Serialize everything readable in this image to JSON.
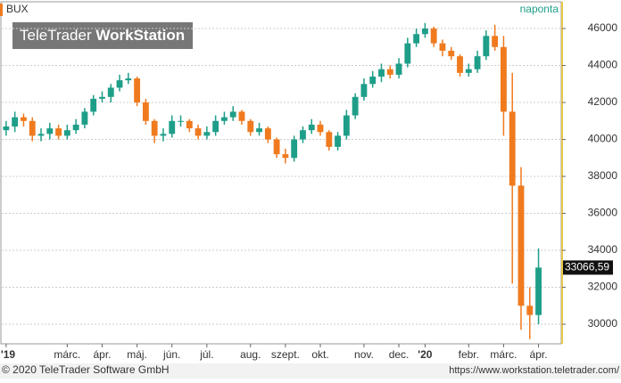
{
  "branding": {
    "logo_light": "TeleTrader",
    "logo_bold": "WorkStation",
    "copyright": "© 2020 TeleTrader Software GmbH",
    "url": "https://www.workstation.teletrader.com/"
  },
  "chart_data": {
    "type": "candlestick",
    "title": "BUX",
    "period": "naponta",
    "categories": [
      "'19",
      null,
      null,
      null,
      null,
      null,
      null,
      "márc.",
      null,
      null,
      null,
      "ápr.",
      null,
      null,
      null,
      "máj.",
      null,
      null,
      null,
      "jún.",
      null,
      null,
      null,
      "júl.",
      null,
      null,
      null,
      null,
      "aug.",
      null,
      null,
      null,
      "szept.",
      null,
      null,
      null,
      "okt.",
      null,
      null,
      null,
      null,
      "nov.",
      null,
      null,
      null,
      "dec.",
      null,
      null,
      "'20",
      null,
      null,
      null,
      null,
      "febr.",
      null,
      null,
      null,
      "márc.",
      null,
      null,
      null,
      "ápr."
    ],
    "open": [
      40500,
      40700,
      41200,
      41000,
      40200,
      40300,
      40600,
      40200,
      40500,
      40800,
      41500,
      42200,
      42300,
      42800,
      43200,
      43300,
      42000,
      41000,
      40200,
      40300,
      41000,
      41000,
      40600,
      40200,
      40400,
      41000,
      41200,
      41500,
      41000,
      40400,
      40600,
      40000,
      39200,
      39000,
      40000,
      40500,
      40800,
      40400,
      39600,
      40200,
      41300,
      42300,
      43000,
      43400,
      43800,
      43500,
      44100,
      45200,
      45700,
      46000,
      45200,
      44800,
      44500,
      43600,
      43800,
      44500,
      45600,
      45000,
      41500,
      37500,
      31000,
      30500
    ],
    "high": [
      41000,
      41500,
      41400,
      41200,
      40600,
      40900,
      40800,
      40800,
      41100,
      41700,
      42400,
      42600,
      43000,
      43500,
      43600,
      43400,
      42200,
      41100,
      40600,
      41300,
      41300,
      41100,
      40800,
      40700,
      41300,
      41500,
      41800,
      41600,
      41100,
      40900,
      40700,
      40100,
      39500,
      40200,
      40700,
      41100,
      41000,
      40500,
      40400,
      41600,
      42500,
      43300,
      43700,
      44100,
      44000,
      44400,
      45500,
      46000,
      46300,
      46100,
      45400,
      45000,
      44600,
      44100,
      44800,
      45900,
      46200,
      45600,
      43600,
      38500,
      32000,
      34100
    ],
    "low": [
      40200,
      40400,
      40700,
      39900,
      39900,
      40000,
      40000,
      40000,
      40300,
      40600,
      41300,
      42000,
      42000,
      42600,
      43000,
      41800,
      40800,
      39800,
      39900,
      40100,
      40700,
      40400,
      40000,
      40000,
      40200,
      40800,
      41000,
      40800,
      40200,
      40200,
      39800,
      39000,
      38700,
      38800,
      39800,
      40300,
      40200,
      39400,
      39400,
      40000,
      41100,
      42100,
      42800,
      43100,
      43300,
      43300,
      43900,
      45000,
      45500,
      45000,
      44500,
      44300,
      43400,
      43400,
      43600,
      44300,
      44800,
      40200,
      32200,
      29700,
      29200,
      30000
    ],
    "close": [
      40700,
      41200,
      41000,
      40200,
      40300,
      40600,
      40200,
      40500,
      40800,
      41500,
      42200,
      42300,
      42800,
      43200,
      43300,
      42000,
      41000,
      40200,
      40300,
      41000,
      41000,
      40600,
      40200,
      40400,
      41000,
      41200,
      41500,
      41000,
      40400,
      40600,
      40000,
      39200,
      39000,
      40000,
      40500,
      40800,
      40400,
      39600,
      40200,
      41300,
      42300,
      43000,
      43400,
      43800,
      43500,
      44100,
      45200,
      45700,
      46000,
      45200,
      44800,
      44500,
      43600,
      43800,
      44500,
      45600,
      45000,
      41500,
      37500,
      31000,
      30500,
      33066.59
    ],
    "up_color": "#1e9e88",
    "down_color": "#f07a1e",
    "last_value": {
      "value": 33066.59,
      "label": "33066,59"
    },
    "ylim": [
      28990,
      46580
    ],
    "yticks": [
      30000,
      32000,
      34000,
      36000,
      38000,
      40000,
      42000,
      44000,
      46000
    ],
    "grid": true
  }
}
